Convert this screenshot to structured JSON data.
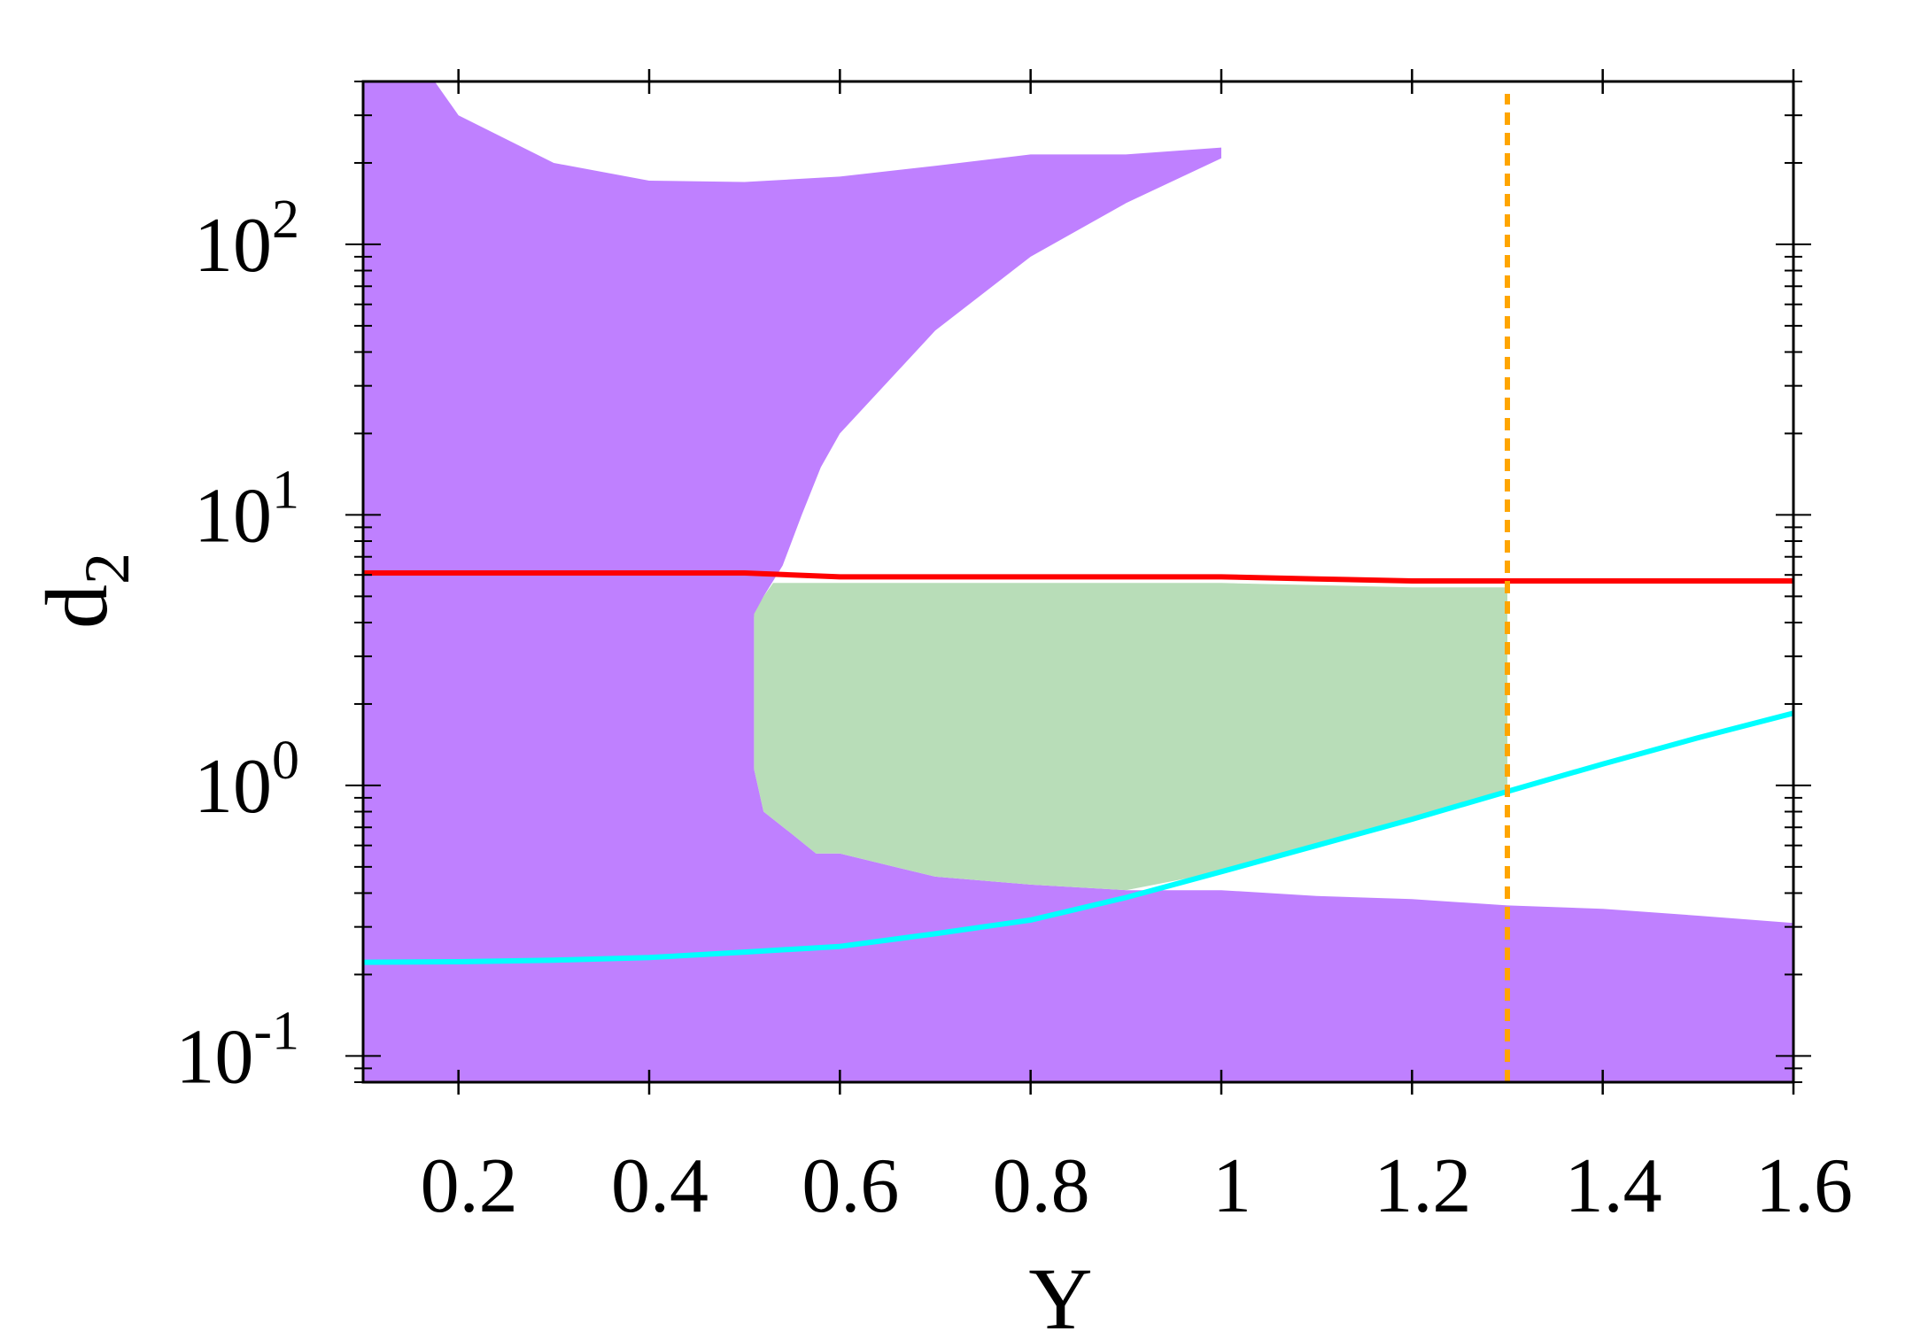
{
  "chart_data": {
    "type": "area",
    "xlabel": "Y",
    "ylabel_main": "d",
    "ylabel_sub": "2",
    "xlim": [
      0.1,
      1.6
    ],
    "ylim": [
      0.08,
      400
    ],
    "yscale": "log",
    "grid": false,
    "legend": "none",
    "x_ticks": [
      0.2,
      0.4,
      0.6,
      0.8,
      1.0,
      1.2,
      1.4,
      1.6
    ],
    "x_tick_labels": [
      "0.2",
      "0.4",
      "0.6",
      "0.8",
      "1",
      "1.2",
      "1.4",
      "1.6"
    ],
    "y_ticks": [
      {
        "value": 0.1,
        "base": "10",
        "exp": "-1"
      },
      {
        "value": 1,
        "base": "10",
        "exp": "0"
      },
      {
        "value": 10,
        "base": "10",
        "exp": "1"
      },
      {
        "value": 100,
        "base": "10",
        "exp": "2"
      }
    ],
    "regions": [
      {
        "color": "#bf80ff",
        "points": [
          [
            0.1,
            400
          ],
          [
            0.175,
            400
          ],
          [
            0.2,
            300
          ],
          [
            0.3,
            200
          ],
          [
            0.4,
            172
          ],
          [
            0.5,
            170
          ],
          [
            0.6,
            178
          ],
          [
            0.7,
            195
          ],
          [
            0.8,
            215
          ],
          [
            0.9,
            215
          ],
          [
            1.0,
            228
          ],
          [
            1.0,
            208
          ],
          [
            0.9,
            142
          ],
          [
            0.8,
            90
          ],
          [
            0.7,
            48
          ],
          [
            0.6,
            20
          ],
          [
            0.58,
            15
          ],
          [
            0.56,
            10
          ],
          [
            0.54,
            6.5
          ],
          [
            0.52,
            5.0
          ],
          [
            0.51,
            4.2
          ],
          [
            0.51,
            1.15
          ],
          [
            0.52,
            0.8
          ],
          [
            0.55,
            0.66
          ],
          [
            0.575,
            0.56
          ],
          [
            0.6,
            0.56
          ],
          [
            0.7,
            0.46
          ],
          [
            0.8,
            0.43
          ],
          [
            0.9,
            0.41
          ],
          [
            1.0,
            0.41
          ],
          [
            1.1,
            0.39
          ],
          [
            1.2,
            0.38
          ],
          [
            1.3,
            0.36
          ],
          [
            1.4,
            0.35
          ],
          [
            1.5,
            0.33
          ],
          [
            1.6,
            0.31
          ],
          [
            1.6,
            0.08
          ],
          [
            0.1,
            0.08
          ]
        ]
      },
      {
        "color": "#b8ddb8",
        "points": [
          [
            0.51,
            4.3
          ],
          [
            0.52,
            5.0
          ],
          [
            0.53,
            5.6
          ],
          [
            1.0,
            5.6
          ],
          [
            1.1,
            5.5
          ],
          [
            1.2,
            5.4
          ],
          [
            1.3,
            5.4
          ],
          [
            1.3,
            0.95
          ],
          [
            1.2,
            0.75
          ],
          [
            1.1,
            0.6
          ],
          [
            1.0,
            0.48
          ],
          [
            0.9,
            0.41
          ],
          [
            0.8,
            0.43
          ],
          [
            0.7,
            0.46
          ],
          [
            0.6,
            0.56
          ],
          [
            0.575,
            0.56
          ],
          [
            0.55,
            0.66
          ],
          [
            0.52,
            0.8
          ],
          [
            0.51,
            1.15
          ]
        ]
      }
    ],
    "series": [
      {
        "color": "#ff0000",
        "style": "solid",
        "x": [
          0.1,
          0.2,
          0.3,
          0.4,
          0.5,
          0.6,
          0.7,
          0.8,
          0.9,
          1.0,
          1.1,
          1.2,
          1.3,
          1.4,
          1.5,
          1.6
        ],
        "y": [
          6.1,
          6.1,
          6.1,
          6.1,
          6.1,
          5.9,
          5.9,
          5.9,
          5.9,
          5.9,
          5.8,
          5.7,
          5.7,
          5.7,
          5.7,
          5.7
        ]
      },
      {
        "color": "#00ffff",
        "style": "solid",
        "x": [
          0.1,
          0.2,
          0.3,
          0.4,
          0.5,
          0.6,
          0.7,
          0.8,
          0.9,
          1.0,
          1.1,
          1.2,
          1.3,
          1.4,
          1.5,
          1.6
        ],
        "y": [
          0.222,
          0.223,
          0.226,
          0.231,
          0.242,
          0.254,
          0.283,
          0.318,
          0.385,
          0.48,
          0.6,
          0.75,
          0.95,
          1.2,
          1.5,
          1.85
        ]
      },
      {
        "color": "#ffa500",
        "style": "dashed",
        "x": [
          1.3,
          1.3
        ],
        "y": [
          0.08,
          360
        ]
      }
    ]
  }
}
